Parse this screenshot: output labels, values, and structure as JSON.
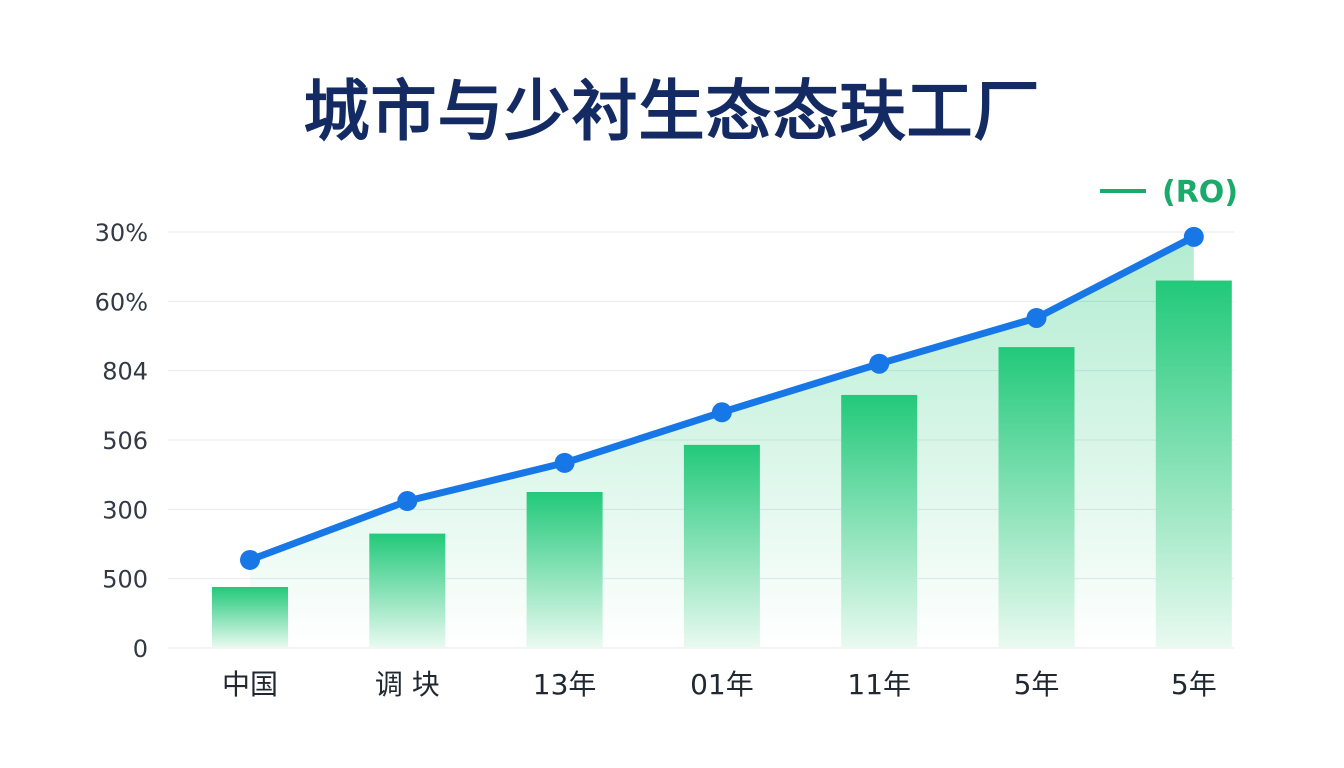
{
  "colors": {
    "title": "#142a63",
    "line": "#1877e6",
    "bar_top": "#22c97a",
    "bar_bottom": "#eafaf1",
    "legend": "#1aaa6a",
    "grid": "#e6e9ee"
  },
  "chart_data": {
    "type": "bar",
    "title": "城市与少衬生态态玞工厂",
    "xlabel": "",
    "ylabel": "",
    "categories": [
      "中国",
      "调 块",
      "13年",
      "01年",
      "11年",
      "5年",
      "5年"
    ],
    "y_tick_labels": [
      "0",
      "500",
      "300",
      "506",
      "804",
      "60%",
      "30%"
    ],
    "ylim": [
      0,
      6
    ],
    "grid": true,
    "legend": {
      "position": "top-right",
      "label": "(RO)"
    },
    "series": [
      {
        "kind": "bar",
        "values": [
          0.88,
          1.65,
          2.25,
          2.93,
          3.65,
          4.34,
          5.3
        ]
      },
      {
        "kind": "line",
        "values": [
          1.27,
          2.12,
          2.67,
          3.4,
          4.1,
          4.76,
          5.93
        ]
      }
    ]
  }
}
